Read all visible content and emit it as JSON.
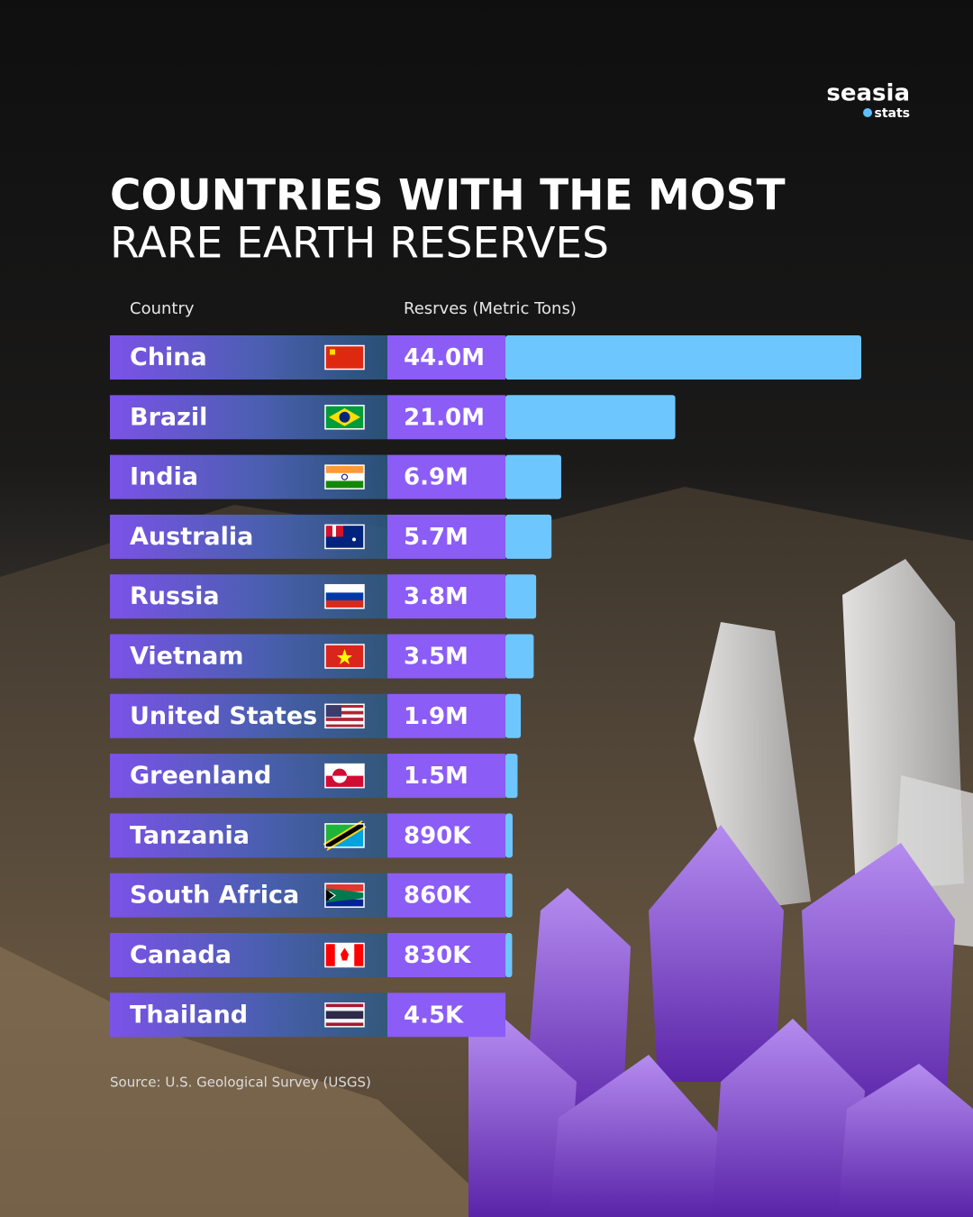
{
  "brand": {
    "name": "seasia",
    "tagline": "stats"
  },
  "chart_data": {
    "type": "bar",
    "title": "COUNTRIES WITH THE MOST",
    "subtitle": "RARE EARTH RESERVES",
    "category_header": "Country",
    "value_header": "Resrves (Metric Tons)",
    "categories": [
      "China",
      "Brazil",
      "India",
      "Australia",
      "Russia",
      "Vietnam",
      "United States",
      "Greenland",
      "Tanzania",
      "South Africa",
      "Canada",
      "Thailand"
    ],
    "values": [
      44000000,
      21000000,
      6900000,
      5700000,
      3800000,
      3500000,
      1900000,
      1500000,
      890000,
      860000,
      830000,
      4500
    ],
    "value_labels": [
      "44.0M",
      "21.0M",
      "6.9M",
      "5.7M",
      "3.8M",
      "3.5M",
      "1.9M",
      "1.5M",
      "890K",
      "860K",
      "830K",
      "4.5K"
    ],
    "color": "#6ec6ff",
    "source": "Source: U.S. Geological Survey (USGS)"
  }
}
